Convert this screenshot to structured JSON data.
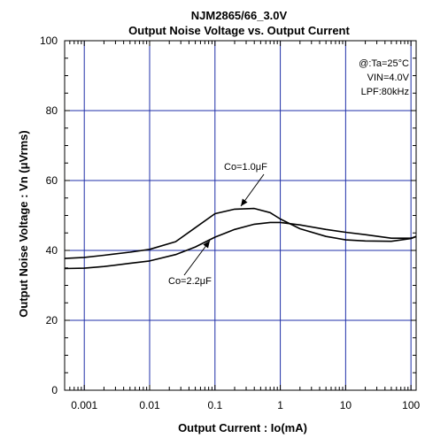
{
  "chart_data": {
    "type": "line",
    "title": "NJM2865/66_3.0V",
    "subtitle": "Output Noise Voltage vs. Output Current",
    "xlabel": "Output Current : Io(mA)",
    "ylabel": "Output Noise Voltage : Vn (μVrms)",
    "xscale": "log",
    "xlim": [
      0.0005,
      120
    ],
    "ylim": [
      0,
      100
    ],
    "x_ticks": [
      {
        "value": 0.001,
        "label": "0.001"
      },
      {
        "value": 0.01,
        "label": "0.01"
      },
      {
        "value": 0.1,
        "label": "0.1"
      },
      {
        "value": 1,
        "label": "1"
      },
      {
        "value": 10,
        "label": "10"
      },
      {
        "value": 100,
        "label": "100"
      }
    ],
    "y_ticks": [
      {
        "value": 0,
        "label": "0"
      },
      {
        "value": 20,
        "label": "20"
      },
      {
        "value": 40,
        "label": "40"
      },
      {
        "value": 60,
        "label": "60"
      },
      {
        "value": 80,
        "label": "80"
      },
      {
        "value": 100,
        "label": "100"
      }
    ],
    "x_major_grid": [
      0.001,
      0.01,
      0.1,
      1,
      10,
      100
    ],
    "y_major_grid": [
      20,
      40,
      60,
      80
    ],
    "grid": true,
    "grid_color": "#1f2fa8",
    "line_color": "#000000",
    "conditions": [
      "@:Ta=25°C",
      "VIN=4.0V",
      "LPF:80kHz"
    ],
    "series": [
      {
        "name": "Co=1.0μF",
        "x": [
          0.0005,
          0.001,
          0.002,
          0.005,
          0.01,
          0.025,
          0.05,
          0.1,
          0.2,
          0.4,
          0.7,
          1,
          2,
          5,
          10,
          20,
          50,
          100,
          120
        ],
        "y": [
          37.7,
          38.0,
          38.6,
          39.5,
          40.3,
          42.5,
          46.5,
          50.5,
          51.8,
          52.0,
          50.8,
          49.0,
          46.2,
          44.0,
          43.0,
          42.7,
          42.6,
          43.4,
          44.0
        ],
        "label_anchor": [
          0.5,
          52.0
        ]
      },
      {
        "name": "Co=2.2μF",
        "x": [
          0.0005,
          0.001,
          0.002,
          0.005,
          0.01,
          0.025,
          0.05,
          0.1,
          0.2,
          0.4,
          0.7,
          1,
          2,
          5,
          10,
          20,
          50,
          100,
          120
        ],
        "y": [
          34.8,
          34.9,
          35.4,
          36.3,
          37.0,
          38.8,
          41.0,
          43.8,
          46.0,
          47.5,
          48.0,
          48.0,
          47.3,
          46.0,
          45.2,
          44.5,
          43.5,
          43.5,
          44.0
        ],
        "label_anchor": [
          0.1,
          43.8
        ]
      }
    ]
  }
}
